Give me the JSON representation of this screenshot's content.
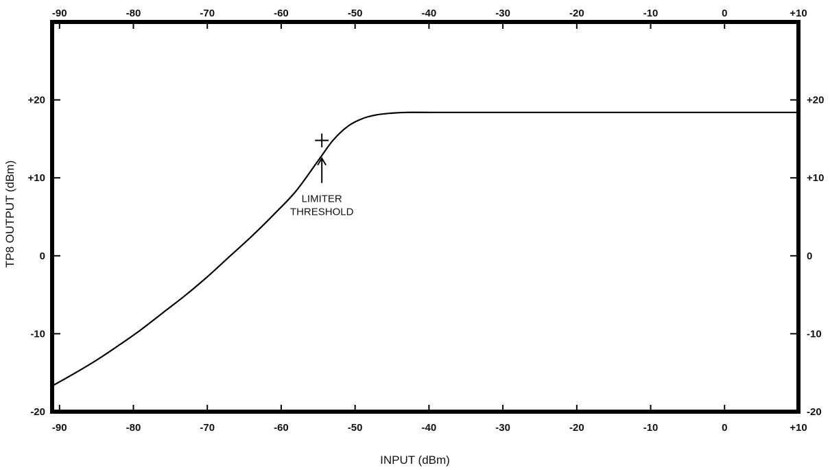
{
  "chart_data": {
    "type": "line",
    "xlabel": "INPUT (dBm)",
    "ylabel": "TP8 OUTPUT (dBm)",
    "xlim": [
      -91,
      10
    ],
    "ylim": [
      -20,
      30
    ],
    "x_ticks": [
      -90,
      -80,
      -70,
      -60,
      -50,
      -40,
      -30,
      -20,
      -10,
      0,
      10
    ],
    "x_tick_labels": [
      "-90",
      "-80",
      "-70",
      "-60",
      "-50",
      "-40",
      "-30",
      "-20",
      "-10",
      "0",
      "+10"
    ],
    "y_ticks": [
      -20,
      -10,
      0,
      10,
      20
    ],
    "y_tick_labels": [
      "-20",
      "-10",
      "0",
      "+10",
      "+20"
    ],
    "grid": false,
    "series": [
      {
        "x": [
          -91,
          -88,
          -85,
          -82,
          -79,
          -76,
          -73,
          -70,
          -67,
          -64,
          -61,
          -58,
          -55,
          -53,
          -51,
          -49,
          -47,
          -45,
          -43,
          -40,
          -30,
          -20,
          -10,
          0,
          10
        ],
        "y": [
          -16.7,
          -15.1,
          -13.4,
          -11.5,
          -9.5,
          -7.3,
          -5.1,
          -2.7,
          -0.1,
          2.5,
          5.3,
          8.3,
          12.2,
          14.8,
          16.6,
          17.6,
          18.1,
          18.3,
          18.4,
          18.4,
          18.4,
          18.4,
          18.4,
          18.4,
          18.4
        ]
      }
    ],
    "annotations": [
      {
        "x": -54.5,
        "y": 14.8,
        "marker": "cross",
        "label_lines": [
          "LIMITER",
          "THRESHOLD"
        ]
      }
    ]
  }
}
